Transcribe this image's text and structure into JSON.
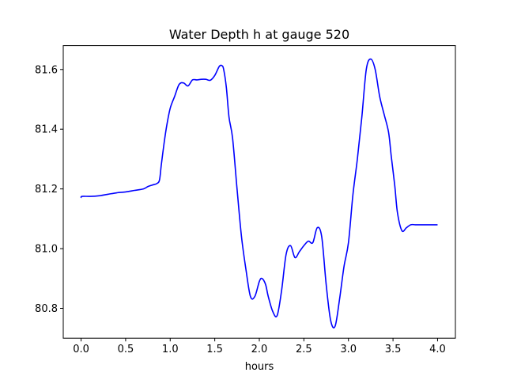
{
  "chart_data": {
    "type": "line",
    "title": "Water Depth h at gauge 520",
    "xlabel": "hours",
    "ylabel": "",
    "xlim": [
      -0.2,
      4.2
    ],
    "ylim": [
      80.7,
      81.68
    ],
    "xticks": [
      0.0,
      0.5,
      1.0,
      1.5,
      2.0,
      2.5,
      3.0,
      3.5,
      4.0
    ],
    "xtick_labels": [
      "0.0",
      "0.5",
      "1.0",
      "1.5",
      "2.0",
      "2.5",
      "3.0",
      "3.5",
      "4.0"
    ],
    "yticks": [
      80.8,
      81.0,
      81.2,
      81.4,
      81.6
    ],
    "ytick_labels": [
      "80.8",
      "81.0",
      "81.2",
      "81.4",
      "81.6"
    ],
    "grid": false,
    "series": [
      {
        "color": "#0000ff",
        "x": [
          0.0,
          0.01,
          0.1,
          0.2,
          0.3,
          0.4,
          0.5,
          0.6,
          0.7,
          0.75,
          0.8,
          0.85,
          0.88,
          0.9,
          0.93,
          0.96,
          1.0,
          1.05,
          1.1,
          1.15,
          1.2,
          1.25,
          1.3,
          1.35,
          1.4,
          1.45,
          1.5,
          1.55,
          1.58,
          1.6,
          1.63,
          1.66,
          1.7,
          1.75,
          1.8,
          1.85,
          1.9,
          1.95,
          2.0,
          2.03,
          2.07,
          2.1,
          2.15,
          2.2,
          2.25,
          2.3,
          2.35,
          2.4,
          2.45,
          2.5,
          2.55,
          2.6,
          2.65,
          2.7,
          2.75,
          2.8,
          2.85,
          2.9,
          2.95,
          3.0,
          3.05,
          3.1,
          3.15,
          3.2,
          3.25,
          3.3,
          3.35,
          3.4,
          3.45,
          3.48,
          3.52,
          3.55,
          3.6,
          3.65,
          3.7,
          3.75,
          3.8,
          3.85,
          3.9,
          3.95,
          3.97,
          4.0
        ],
        "y": [
          81.17,
          81.175,
          81.175,
          81.177,
          81.182,
          81.187,
          81.19,
          81.195,
          81.2,
          81.208,
          81.213,
          81.218,
          81.23,
          81.28,
          81.35,
          81.41,
          81.47,
          81.51,
          81.55,
          81.555,
          81.545,
          81.565,
          81.565,
          81.567,
          81.567,
          81.564,
          81.58,
          81.61,
          81.613,
          81.6,
          81.54,
          81.44,
          81.37,
          81.2,
          81.04,
          80.93,
          80.84,
          80.84,
          80.89,
          80.9,
          80.88,
          80.84,
          80.79,
          80.776,
          80.86,
          80.98,
          81.01,
          80.97,
          80.99,
          81.01,
          81.025,
          81.02,
          81.07,
          81.04,
          80.88,
          80.76,
          80.74,
          80.83,
          80.94,
          81.02,
          81.18,
          81.3,
          81.44,
          81.6,
          81.635,
          81.6,
          81.51,
          81.45,
          81.39,
          81.31,
          81.21,
          81.12,
          81.06,
          81.07,
          81.08,
          81.08,
          81.08,
          81.08,
          81.08,
          81.08,
          81.08,
          81.08
        ]
      }
    ]
  }
}
